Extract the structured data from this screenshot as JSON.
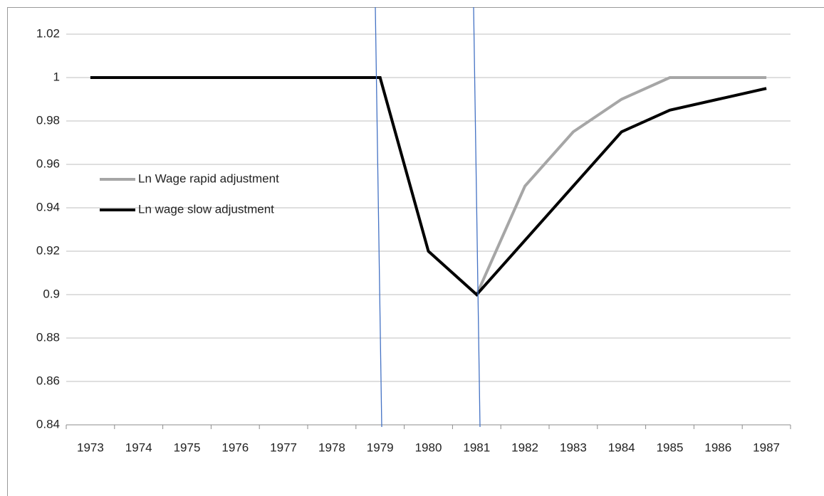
{
  "chart_data": {
    "type": "line",
    "categories": [
      "1973",
      "1974",
      "1975",
      "1976",
      "1977",
      "1978",
      "1979",
      "1980",
      "1981",
      "1982",
      "1983",
      "1984",
      "1985",
      "1986",
      "1987"
    ],
    "series": [
      {
        "name": "Ln Wage rapid adjustment",
        "color": "#a6a6a6",
        "values": [
          1,
          1,
          1,
          1,
          1,
          1,
          1,
          0.92,
          0.9,
          0.95,
          0.975,
          0.99,
          1,
          1,
          1
        ]
      },
      {
        "name": "Ln wage slow adjustment",
        "color": "#000000",
        "values": [
          1,
          1,
          1,
          1,
          1,
          1,
          1,
          0.92,
          0.9,
          0.925,
          0.95,
          0.975,
          0.985,
          0.99,
          0.995
        ]
      }
    ],
    "ylim": [
      0.84,
      1.02
    ],
    "yticks": [
      0.84,
      0.86,
      0.88,
      0.9,
      0.92,
      0.94,
      0.96,
      0.98,
      1,
      1.02
    ],
    "grid": true
  }
}
